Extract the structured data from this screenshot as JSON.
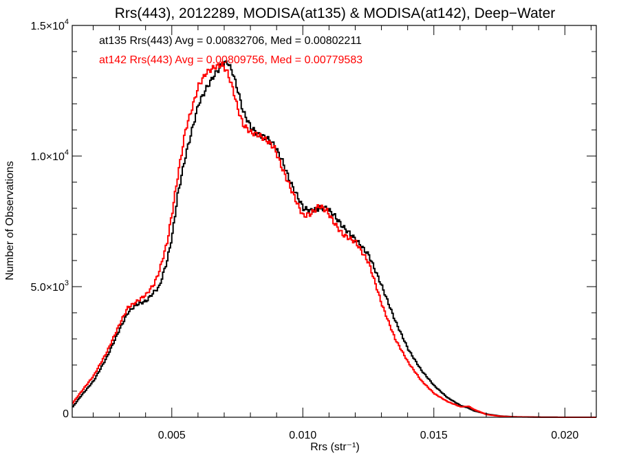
{
  "chart_data": {
    "type": "line",
    "title": "Rrs(443), 2012289, MODISA(at135) & MODISA(at142), Deep−Water",
    "xlabel": "Rrs (str⁻¹)",
    "ylabel": "Number of Observations",
    "xlim": [
      0.0012,
      0.0212
    ],
    "ylim": [
      0,
      15000
    ],
    "grid": false,
    "x_ticks": [
      {
        "value": 0.005,
        "label": "0.005"
      },
      {
        "value": 0.01,
        "label": "0.010"
      },
      {
        "value": 0.015,
        "label": "0.015"
      },
      {
        "value": 0.02,
        "label": "0.020"
      }
    ],
    "y_ticks": [
      {
        "value": 0,
        "mantissa": "0",
        "exponent": ""
      },
      {
        "value": 5000,
        "mantissa": "5.0×10",
        "exponent": "3"
      },
      {
        "value": 10000,
        "mantissa": "1.0×10",
        "exponent": "4"
      },
      {
        "value": 15000,
        "mantissa": "1.5×10",
        "exponent": "4"
      }
    ],
    "annotations": [
      {
        "text": "at135 Rrs(443) Avg = 0.00832706, Med = 0.00802211",
        "color": "#000000"
      },
      {
        "text": "at142 Rrs(443) Avg = 0.00809756, Med = 0.00779583",
        "color": "#ff0000"
      }
    ],
    "series": [
      {
        "color": "#000000",
        "points": [
          [
            0.0012,
            400
          ],
          [
            0.0015,
            800
          ],
          [
            0.002,
            1400
          ],
          [
            0.0025,
            2300
          ],
          [
            0.003,
            3400
          ],
          [
            0.0033,
            4000
          ],
          [
            0.0036,
            4300
          ],
          [
            0.004,
            4450
          ],
          [
            0.0043,
            4800
          ],
          [
            0.0045,
            5000
          ],
          [
            0.0048,
            6000
          ],
          [
            0.005,
            7000
          ],
          [
            0.0052,
            8500
          ],
          [
            0.0055,
            10000
          ],
          [
            0.0058,
            11200
          ],
          [
            0.006,
            12000
          ],
          [
            0.0063,
            12600
          ],
          [
            0.0066,
            13100
          ],
          [
            0.0069,
            13500
          ],
          [
            0.0071,
            13600
          ],
          [
            0.0073,
            13200
          ],
          [
            0.0075,
            12500
          ],
          [
            0.0077,
            11700
          ],
          [
            0.008,
            11100
          ],
          [
            0.0083,
            10800
          ],
          [
            0.0086,
            10700
          ],
          [
            0.0089,
            10400
          ],
          [
            0.0092,
            9800
          ],
          [
            0.0095,
            9000
          ],
          [
            0.0098,
            8400
          ],
          [
            0.01,
            8000
          ],
          [
            0.0103,
            7900
          ],
          [
            0.0106,
            8000
          ],
          [
            0.0109,
            8000
          ],
          [
            0.0112,
            7700
          ],
          [
            0.0115,
            7300
          ],
          [
            0.012,
            6800
          ],
          [
            0.0125,
            6200
          ],
          [
            0.013,
            5000
          ],
          [
            0.0135,
            3700
          ],
          [
            0.014,
            2600
          ],
          [
            0.0145,
            1800
          ],
          [
            0.015,
            1200
          ],
          [
            0.0155,
            750
          ],
          [
            0.016,
            450
          ],
          [
            0.0163,
            350
          ],
          [
            0.0165,
            250
          ],
          [
            0.017,
            120
          ],
          [
            0.0175,
            50
          ],
          [
            0.018,
            20
          ],
          [
            0.019,
            5
          ],
          [
            0.02,
            0
          ],
          [
            0.0212,
            0
          ]
        ]
      },
      {
        "color": "#ff0000",
        "points": [
          [
            0.0012,
            550
          ],
          [
            0.0015,
            950
          ],
          [
            0.002,
            1600
          ],
          [
            0.0025,
            2500
          ],
          [
            0.003,
            3600
          ],
          [
            0.0033,
            4200
          ],
          [
            0.0036,
            4400
          ],
          [
            0.004,
            4700
          ],
          [
            0.0043,
            5100
          ],
          [
            0.0045,
            5600
          ],
          [
            0.0048,
            6700
          ],
          [
            0.005,
            7900
          ],
          [
            0.0052,
            9200
          ],
          [
            0.0055,
            11000
          ],
          [
            0.0058,
            12000
          ],
          [
            0.006,
            12700
          ],
          [
            0.0063,
            13200
          ],
          [
            0.0066,
            13400
          ],
          [
            0.0069,
            13500
          ],
          [
            0.0071,
            13200
          ],
          [
            0.0073,
            12600
          ],
          [
            0.0075,
            11800
          ],
          [
            0.0077,
            11200
          ],
          [
            0.008,
            10900
          ],
          [
            0.0083,
            10800
          ],
          [
            0.0086,
            10600
          ],
          [
            0.0089,
            10300
          ],
          [
            0.0092,
            9500
          ],
          [
            0.0095,
            8800
          ],
          [
            0.0098,
            8100
          ],
          [
            0.01,
            7700
          ],
          [
            0.0103,
            7800
          ],
          [
            0.0106,
            8100
          ],
          [
            0.0109,
            7900
          ],
          [
            0.0112,
            7400
          ],
          [
            0.0115,
            7000
          ],
          [
            0.012,
            6700
          ],
          [
            0.0125,
            5900
          ],
          [
            0.013,
            4300
          ],
          [
            0.0135,
            3000
          ],
          [
            0.014,
            2100
          ],
          [
            0.0145,
            1400
          ],
          [
            0.015,
            900
          ],
          [
            0.0155,
            600
          ],
          [
            0.016,
            400
          ],
          [
            0.0163,
            420
          ],
          [
            0.0165,
            300
          ],
          [
            0.017,
            100
          ],
          [
            0.0175,
            40
          ],
          [
            0.018,
            15
          ],
          [
            0.019,
            5
          ],
          [
            0.02,
            0
          ],
          [
            0.0212,
            0
          ]
        ]
      }
    ]
  }
}
